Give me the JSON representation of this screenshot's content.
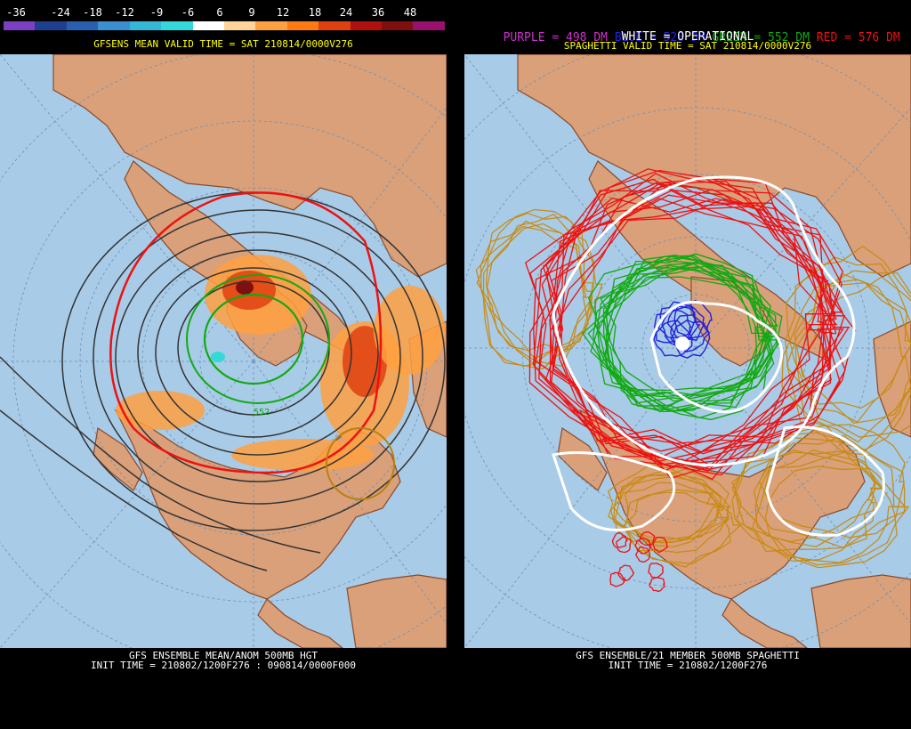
{
  "left": {
    "legend_ticks": [
      "-36",
      "-24",
      "-18",
      "-12",
      "-9",
      "-6",
      "6",
      "9",
      "12",
      "18",
      "24",
      "36",
      "48"
    ],
    "legend_colors": [
      "#7b3fc4",
      "#1f3f8f",
      "#2a5fb0",
      "#3a8fd0",
      "#35b8d8",
      "#35d8d8",
      "#ffffff",
      "#ffd49a",
      "#ffa040",
      "#ff7a10",
      "#e04010",
      "#b01010",
      "#801010",
      "#9a1070"
    ],
    "valid_time": "GFSENS MEAN VALID TIME = SAT 210814/0000V276",
    "bottom_line1": "GFS ENSEMBLE MEAN/ANOM 500MB HGT",
    "bottom_line2": "INIT TIME = 210802/1200F276 : 090814/0000F000",
    "contour_label": "552"
  },
  "right": {
    "legend": [
      {
        "text": "PURPLE = 498 DM",
        "color": "#cc33cc"
      },
      {
        "text": "BLUE = 528 DM",
        "color": "#2222dd"
      },
      {
        "text": "GREEN = 552 DM",
        "color": "#11aa11"
      },
      {
        "text": "RED = 576 DM",
        "color": "#ee1111"
      }
    ],
    "operational": "WHITE = OPERATIONAL",
    "valid_time": "SPAGHETTI VALID TIME = SAT 210814/0000V276",
    "bottom_line1": "GFS ENSEMBLE/21 MEMBER 500MB SPAGHETTI",
    "bottom_line2": "INIT TIME = 210802/1200F276"
  },
  "colors": {
    "ocean": "#a8cbe8",
    "land": "#d9a07a",
    "border": "#8a4a2a",
    "grid": "#7090b0"
  }
}
